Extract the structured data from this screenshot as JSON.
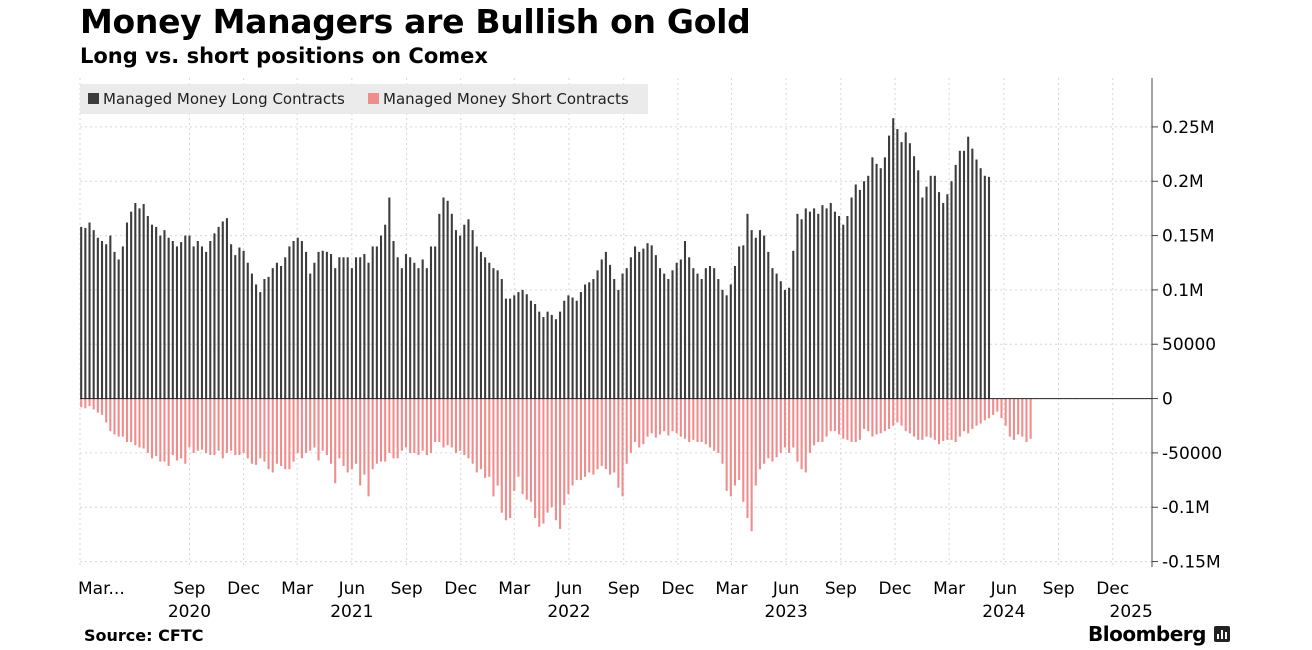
{
  "chart_data": {
    "type": "bar",
    "title": "Money Managers are Bullish on Gold",
    "subtitle": "Long vs. short positions on Comex",
    "source": "Source: CFTC",
    "brand": "Bloomberg",
    "legend": {
      "placement": "top-left",
      "entries": [
        {
          "name": "Managed Money Long Contracts",
          "color": "#3c3c3c"
        },
        {
          "name": "Managed Money Short Contracts",
          "color": "#f08c8c"
        }
      ]
    },
    "ylim": [
      -155000,
      295000
    ],
    "y_ticks": [
      {
        "value": 250000,
        "label": "0.25M"
      },
      {
        "value": 200000,
        "label": "0.2M"
      },
      {
        "value": 150000,
        "label": "0.15M"
      },
      {
        "value": 100000,
        "label": "0.1M"
      },
      {
        "value": 50000,
        "label": "50000"
      },
      {
        "value": 0,
        "label": "0"
      },
      {
        "value": -50000,
        "label": "-50000"
      },
      {
        "value": -100000,
        "label": "-0.1M"
      },
      {
        "value": -150000,
        "label": "-0.15M"
      }
    ],
    "x_start": "2020-03-01",
    "x_end": "2025-02-05",
    "x_ticks": [
      {
        "date": "2020-03-01",
        "label": "Mar..."
      },
      {
        "date": "2020-09-01",
        "label": "Sep"
      },
      {
        "date": "2020-12-01",
        "label": "Dec"
      },
      {
        "date": "2021-03-01",
        "label": "Mar"
      },
      {
        "date": "2021-06-01",
        "label": "Jun"
      },
      {
        "date": "2021-09-01",
        "label": "Sep"
      },
      {
        "date": "2021-12-01",
        "label": "Dec"
      },
      {
        "date": "2022-03-01",
        "label": "Mar"
      },
      {
        "date": "2022-06-01",
        "label": "Jun"
      },
      {
        "date": "2022-09-01",
        "label": "Sep"
      },
      {
        "date": "2022-12-01",
        "label": "Dec"
      },
      {
        "date": "2023-03-01",
        "label": "Mar"
      },
      {
        "date": "2023-06-01",
        "label": "Jun"
      },
      {
        "date": "2023-09-01",
        "label": "Sep"
      },
      {
        "date": "2023-12-01",
        "label": "Dec"
      },
      {
        "date": "2024-03-01",
        "label": "Mar"
      },
      {
        "date": "2024-06-01",
        "label": "Jun"
      },
      {
        "date": "2024-09-01",
        "label": "Sep"
      },
      {
        "date": "2024-12-01",
        "label": "Dec"
      }
    ],
    "year_labels": [
      {
        "date": "2020-09-01",
        "label": "2020"
      },
      {
        "date": "2021-06-01",
        "label": "2021"
      },
      {
        "date": "2022-06-01",
        "label": "2022"
      },
      {
        "date": "2023-06-01",
        "label": "2023"
      },
      {
        "date": "2024-06-01",
        "label": "2024"
      },
      {
        "date": "2025-01-01",
        "label": "2025"
      }
    ],
    "grid": true,
    "first_period": "2020-03-03",
    "period_days": 7,
    "series": [
      {
        "name": "Managed Money Long Contracts",
        "values": [
          158000,
          157000,
          162000,
          155000,
          148000,
          145000,
          142000,
          150000,
          135000,
          128000,
          140000,
          162000,
          172000,
          180000,
          175000,
          179000,
          168000,
          160000,
          158000,
          150000,
          155000,
          148000,
          145000,
          140000,
          144000,
          150000,
          150000,
          140000,
          145000,
          140000,
          135000,
          145000,
          152000,
          158000,
          163000,
          166000,
          142000,
          132000,
          139000,
          136000,
          125000,
          115000,
          105000,
          98000,
          110000,
          112000,
          120000,
          125000,
          122000,
          130000,
          140000,
          145000,
          148000,
          145000,
          135000,
          115000,
          125000,
          135000,
          136000,
          135000,
          133000,
          120000,
          130000,
          130000,
          130000,
          120000,
          130000,
          130000,
          133000,
          125000,
          140000,
          140000,
          150000,
          160000,
          185000,
          145000,
          130000,
          120000,
          133000,
          130000,
          125000,
          120000,
          128000,
          120000,
          140000,
          140000,
          170000,
          185000,
          182000,
          170000,
          155000,
          150000,
          160000,
          165000,
          155000,
          140000,
          135000,
          130000,
          125000,
          120000,
          118000,
          110000,
          92000,
          92000,
          95000,
          98000,
          100000,
          96000,
          90000,
          87000,
          80000,
          75000,
          80000,
          77000,
          73000,
          80000,
          90000,
          95000,
          93000,
          90000,
          98000,
          105000,
          107000,
          110000,
          118000,
          128000,
          135000,
          123000,
          110000,
          100000,
          115000,
          120000,
          130000,
          140000,
          135000,
          138000,
          143000,
          141000,
          132000,
          120000,
          115000,
          110000,
          118000,
          125000,
          128000,
          145000,
          130000,
          120000,
          115000,
          110000,
          120000,
          122000,
          120000,
          110000,
          100000,
          95000,
          105000,
          122000,
          140000,
          141000,
          170000,
          155000,
          148000,
          155000,
          150000,
          135000,
          120000,
          115000,
          108000,
          100000,
          102000,
          136000,
          170000,
          165000,
          175000,
          172000,
          175000,
          170000,
          178000,
          175000,
          180000,
          172000,
          168000,
          160000,
          168000,
          185000,
          197000,
          192000,
          200000,
          205000,
          222000,
          216000,
          212000,
          222000,
          242000,
          258000,
          248000,
          236000,
          245000,
          235000,
          223000,
          210000,
          185000,
          195000,
          205000,
          205000,
          190000,
          180000,
          188000,
          200000,
          215000,
          228000,
          228000,
          241000,
          230000,
          220000,
          212000,
          205000,
          204000
        ]
      },
      {
        "name": "Managed Money Short Contracts",
        "values": [
          -8000,
          -9000,
          -7000,
          -10000,
          -13000,
          -15000,
          -22000,
          -30000,
          -33000,
          -35000,
          -35000,
          -40000,
          -40000,
          -43000,
          -45000,
          -46000,
          -50000,
          -55000,
          -53000,
          -58000,
          -58000,
          -62000,
          -52000,
          -57000,
          -55000,
          -60000,
          -45000,
          -50000,
          -48000,
          -47000,
          -50000,
          -52000,
          -52000,
          -48000,
          -55000,
          -50000,
          -48000,
          -52000,
          -52000,
          -50000,
          -55000,
          -60000,
          -61000,
          -55000,
          -58000,
          -65000,
          -68000,
          -60000,
          -62000,
          -65000,
          -65000,
          -58000,
          -50000,
          -55000,
          -50000,
          -48000,
          -45000,
          -57000,
          -48000,
          -52000,
          -60000,
          -78000,
          -55000,
          -62000,
          -68000,
          -65000,
          -60000,
          -80000,
          -70000,
          -90000,
          -65000,
          -60000,
          -58000,
          -58000,
          -50000,
          -55000,
          -55000,
          -48000,
          -45000,
          -50000,
          -50000,
          -52000,
          -48000,
          -52000,
          -50000,
          -40000,
          -40000,
          -45000,
          -43000,
          -45000,
          -50000,
          -48000,
          -52000,
          -55000,
          -60000,
          -68000,
          -65000,
          -73000,
          -72000,
          -90000,
          -80000,
          -105000,
          -112000,
          -110000,
          -85000,
          -72000,
          -88000,
          -93000,
          -95000,
          -110000,
          -118000,
          -115000,
          -105000,
          -100000,
          -112000,
          -120000,
          -98000,
          -88000,
          -80000,
          -75000,
          -75000,
          -72000,
          -68000,
          -70000,
          -65000,
          -62000,
          -65000,
          -70000,
          -68000,
          -82000,
          -90000,
          -60000,
          -50000,
          -40000,
          -45000,
          -42000,
          -35000,
          -32000,
          -36000,
          -33000,
          -30000,
          -34000,
          -30000,
          -32000,
          -35000,
          -37000,
          -40000,
          -38000,
          -40000,
          -40000,
          -42000,
          -45000,
          -48000,
          -50000,
          -60000,
          -85000,
          -90000,
          -80000,
          -75000,
          -95000,
          -110000,
          -122000,
          -80000,
          -65000,
          -60000,
          -55000,
          -58000,
          -54000,
          -50000,
          -45000,
          -50000,
          -45000,
          -58000,
          -65000,
          -68000,
          -50000,
          -43000,
          -40000,
          -40000,
          -35000,
          -30000,
          -30000,
          -33000,
          -37000,
          -38000,
          -40000,
          -40000,
          -38000,
          -28000,
          -30000,
          -35000,
          -33000,
          -32000,
          -30000,
          -28000,
          -25000,
          -22000,
          -25000,
          -30000,
          -32000,
          -35000,
          -38000,
          -38000,
          -35000,
          -36000,
          -38000,
          -42000,
          -39000,
          -38000,
          -38000,
          -40000,
          -35000,
          -30000,
          -32000,
          -28000,
          -25000,
          -23000,
          -20000,
          -18000,
          -15000,
          -12000,
          -18000,
          -25000,
          -35000,
          -38000,
          -33000,
          -35000,
          -40000,
          -37000
        ]
      }
    ]
  }
}
